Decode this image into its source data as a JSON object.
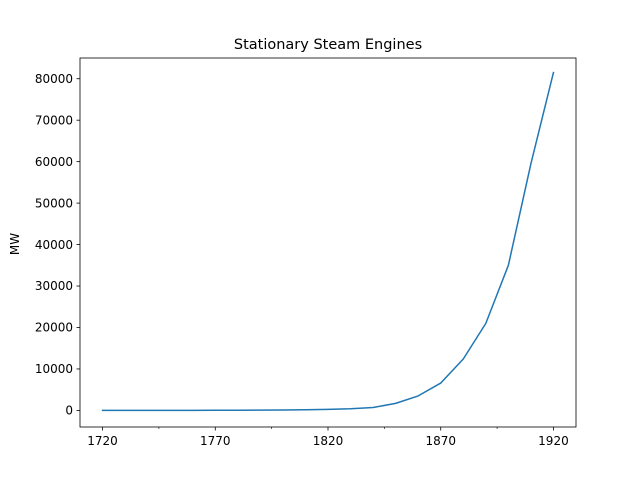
{
  "chart_data": {
    "type": "line",
    "title": "Stationary Steam Engines",
    "xlabel": "",
    "ylabel": "MW",
    "xlim": [
      1710,
      1930
    ],
    "ylim": [
      -4000,
      85000
    ],
    "x_major_ticks": [
      1720,
      1770,
      1820,
      1870,
      1920
    ],
    "x_major_tick_labels": [
      "1720",
      "1770",
      "1820",
      "1870",
      "1920"
    ],
    "x_minor_ticks": [
      1745,
      1795,
      1845,
      1895
    ],
    "y_ticks": [
      0,
      10000,
      20000,
      30000,
      40000,
      50000,
      60000,
      70000,
      80000
    ],
    "y_tick_labels": [
      "0",
      "10000",
      "20000",
      "30000",
      "40000",
      "50000",
      "60000",
      "70000",
      "80000"
    ],
    "grid": false,
    "series": [
      {
        "color": "#1f77b4",
        "x": [
          1720,
          1730,
          1740,
          1750,
          1760,
          1770,
          1780,
          1790,
          1800,
          1810,
          1820,
          1830,
          1840,
          1850,
          1860,
          1870,
          1880,
          1890,
          1900,
          1910,
          1920
        ],
        "y": [
          0,
          5,
          10,
          15,
          20,
          30,
          45,
          70,
          110,
          170,
          260,
          400,
          700,
          1700,
          3500,
          6600,
          12400,
          21000,
          35000,
          59500,
          81500
        ]
      }
    ]
  }
}
